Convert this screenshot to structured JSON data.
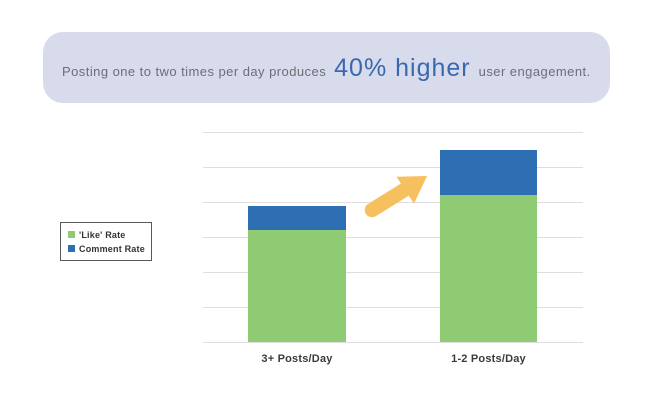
{
  "banner": {
    "text_before": "Posting one to two times per day produces",
    "highlight": "40% higher",
    "text_after": "user engagement.",
    "bg_color": "#d8dbec",
    "text_color": "#6b6f76",
    "highlight_color": "#3a68b0"
  },
  "arrow": {
    "color": "#f7c05f",
    "direction": "up-right"
  },
  "chart_data": {
    "type": "bar",
    "stacked": true,
    "title": "",
    "xlabel": "",
    "ylabel": "",
    "categories": [
      "3+ Posts/Day",
      "1-2 Posts/Day"
    ],
    "series": [
      {
        "name": "'Like' Rate",
        "color": "#8fcb73",
        "values": [
          3.2,
          4.2
        ]
      },
      {
        "name": "Comment Rate",
        "color": "#2d6fb2",
        "values": [
          0.7,
          1.3
        ]
      }
    ],
    "totals": [
      3.9,
      5.5
    ],
    "ylim": [
      0,
      6
    ],
    "y_tick_labels_visible": false,
    "units": "relative gridline units (no numeric axis labels shown)",
    "gridline_count": 7,
    "legend_position": "left",
    "annotation": "Yellow arrow pointing up-right between the bars, highlighting ~40% higher total engagement for 1-2 Posts/Day vs 3+ Posts/Day"
  }
}
